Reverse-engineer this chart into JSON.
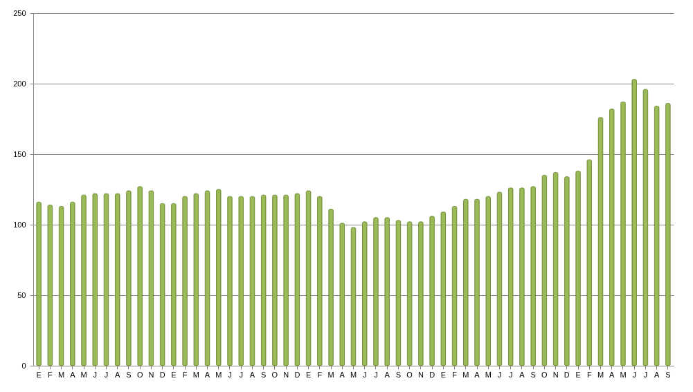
{
  "chart_data": {
    "type": "bar",
    "categories": [
      "E",
      "F",
      "M",
      "A",
      "M",
      "J",
      "J",
      "A",
      "S",
      "O",
      "N",
      "D",
      "E",
      "F",
      "M",
      "A",
      "M",
      "J",
      "J",
      "A",
      "S",
      "O",
      "N",
      "D",
      "E",
      "F",
      "M",
      "A",
      "M",
      "J",
      "J",
      "A",
      "S",
      "O",
      "N",
      "D",
      "E",
      "F",
      "M",
      "A",
      "M",
      "J",
      "J",
      "A",
      "S",
      "O",
      "N",
      "D",
      "E",
      "F",
      "M",
      "A",
      "M",
      "J",
      "J",
      "A",
      "S"
    ],
    "values": [
      116,
      114,
      113,
      116,
      121,
      122,
      122,
      122,
      124,
      127,
      124,
      115,
      115,
      120,
      122,
      124,
      125,
      120,
      120,
      120,
      121,
      121,
      121,
      122,
      124,
      120,
      111,
      101,
      98,
      102,
      105,
      105,
      103,
      102,
      102,
      106,
      109,
      113,
      118,
      118,
      120,
      123,
      126,
      126,
      127,
      135,
      137,
      134,
      138,
      146,
      176,
      182,
      187,
      203,
      196,
      184,
      186
    ],
    "color": "#9bbb59",
    "ylim": [
      0,
      250
    ],
    "yticks": [
      0,
      50,
      100,
      150,
      200,
      250
    ],
    "grid": "y"
  }
}
